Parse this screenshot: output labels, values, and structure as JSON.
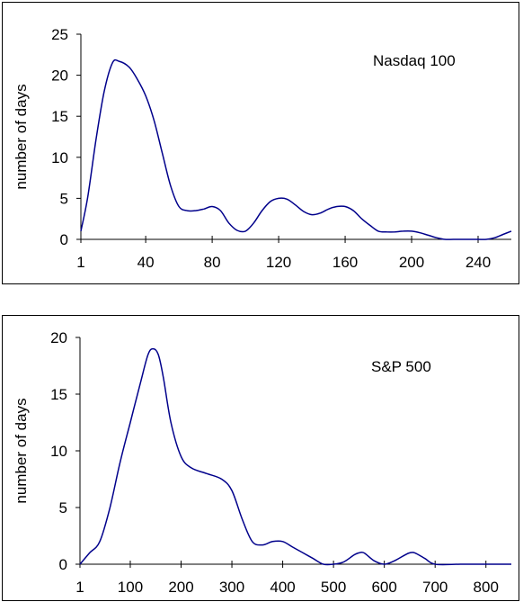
{
  "chart_data": [
    {
      "type": "line",
      "ylabel": "number of days",
      "annotation": "Nasdaq 100",
      "xlim": [
        1,
        260
      ],
      "ylim": [
        0,
        25
      ],
      "xticks": [
        1,
        40,
        80,
        120,
        160,
        200,
        240
      ],
      "xtick_labels": [
        "1",
        "40",
        "80",
        "120",
        "160",
        "200",
        "240"
      ],
      "yticks": [
        0,
        5,
        10,
        15,
        20,
        25
      ],
      "ytick_labels": [
        "0",
        "5",
        "10",
        "15",
        "20",
        "25"
      ],
      "line_color": "#00008b",
      "series": [
        {
          "x": [
            1,
            5,
            10,
            15,
            20,
            24,
            30,
            35,
            40,
            45,
            50,
            55,
            60,
            65,
            70,
            75,
            80,
            85,
            90,
            95,
            100,
            105,
            110,
            115,
            120,
            125,
            130,
            135,
            140,
            145,
            150,
            155,
            160,
            165,
            170,
            175,
            180,
            185,
            190,
            195,
            200,
            205,
            210,
            215,
            220,
            225,
            230,
            235,
            240,
            245,
            250,
            255,
            260
          ],
          "y": [
            1,
            5,
            12,
            18,
            21.5,
            21.7,
            21,
            19.5,
            17.5,
            14.5,
            10.5,
            6.5,
            4,
            3.5,
            3.5,
            3.7,
            4,
            3.5,
            2,
            1.1,
            1,
            2,
            3.5,
            4.6,
            5,
            4.9,
            4.2,
            3.4,
            3,
            3.2,
            3.7,
            4,
            4,
            3.5,
            2.5,
            1.7,
            1,
            0.9,
            0.9,
            1,
            1,
            0.8,
            0.5,
            0.2,
            0,
            0,
            0,
            0,
            0,
            0,
            0.2,
            0.6,
            1
          ]
        }
      ]
    },
    {
      "type": "line",
      "ylabel": "number of days",
      "annotation": "S&P 500",
      "xlim": [
        1,
        850
      ],
      "ylim": [
        0,
        20
      ],
      "xticks": [
        1,
        100,
        200,
        300,
        400,
        500,
        600,
        700,
        800
      ],
      "xtick_labels": [
        "1",
        "100",
        "200",
        "300",
        "400",
        "500",
        "600",
        "700",
        "800"
      ],
      "yticks": [
        0,
        5,
        10,
        15,
        20
      ],
      "ytick_labels": [
        "0",
        "5",
        "10",
        "15",
        "20"
      ],
      "line_color": "#00008b",
      "series": [
        {
          "x": [
            1,
            20,
            40,
            60,
            80,
            100,
            120,
            135,
            145,
            155,
            165,
            180,
            200,
            220,
            250,
            280,
            300,
            320,
            340,
            360,
            380,
            400,
            420,
            440,
            460,
            480,
            500,
            520,
            540,
            550,
            560,
            580,
            600,
            620,
            640,
            650,
            660,
            680,
            700,
            750,
            800,
            850
          ],
          "y": [
            0,
            1,
            2,
            5,
            9,
            12.5,
            16,
            18.5,
            19,
            18.5,
            16.5,
            12.5,
            9.5,
            8.5,
            8,
            7.5,
            6.5,
            4,
            2,
            1.7,
            2,
            2,
            1.5,
            1,
            0.5,
            0,
            0,
            0.2,
            0.8,
            1,
            1,
            0.3,
            0,
            0.3,
            0.8,
            1,
            1,
            0.5,
            0,
            0,
            0,
            0
          ]
        }
      ]
    }
  ]
}
